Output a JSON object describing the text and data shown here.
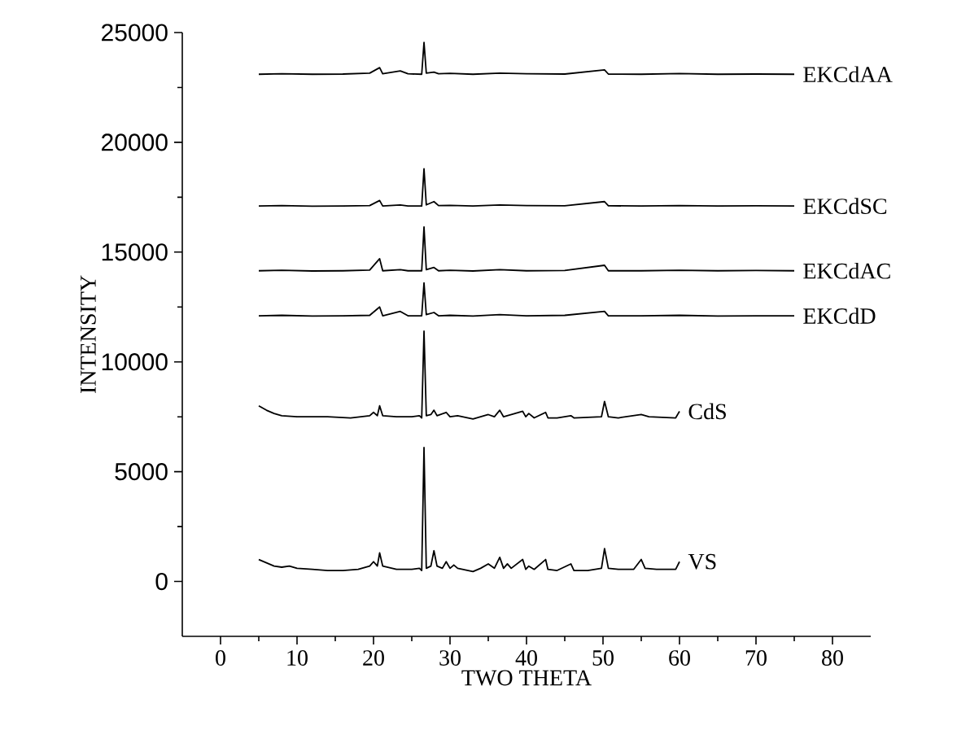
{
  "chart_data": {
    "type": "line",
    "xlabel": "TWO THETA",
    "ylabel": "INTENSITY",
    "xlim": [
      -5,
      85
    ],
    "ylim": [
      -2500,
      25000
    ],
    "xticks": [
      0,
      10,
      20,
      30,
      40,
      50,
      60,
      70,
      80
    ],
    "yticks": [
      0,
      5000,
      10000,
      15000,
      20000,
      25000
    ],
    "grid": false,
    "marker": "none",
    "line_style": "solid",
    "series": [
      {
        "name": "VS",
        "color": "#000000",
        "x": [
          5,
          6,
          7,
          8,
          9,
          10,
          12,
          14,
          16,
          18,
          19.5,
          20,
          20.5,
          20.8,
          21.2,
          23,
          25,
          26,
          26.3,
          26.6,
          26.9,
          27.5,
          27.9,
          28.3,
          29,
          29.5,
          30,
          30.5,
          31,
          33,
          34,
          35,
          35.8,
          36.5,
          37,
          37.5,
          38,
          39.5,
          39.9,
          40.3,
          41,
          42.5,
          42.8,
          44,
          45.8,
          46.2,
          48,
          49.8,
          50.2,
          50.7,
          52,
          54,
          55,
          55.5,
          57,
          59.5,
          60
        ],
        "values": [
          1000,
          850,
          700,
          650,
          700,
          600,
          550,
          500,
          500,
          550,
          700,
          900,
          700,
          1300,
          700,
          550,
          550,
          600,
          500,
          6100,
          600,
          700,
          1400,
          700,
          600,
          900,
          600,
          750,
          600,
          450,
          600,
          800,
          600,
          1100,
          600,
          800,
          600,
          1000,
          550,
          700,
          550,
          1000,
          550,
          500,
          800,
          500,
          500,
          600,
          1500,
          600,
          550,
          550,
          1000,
          600,
          550,
          550,
          900
        ]
      },
      {
        "name": "CdS",
        "color": "#000000",
        "x": [
          5,
          6,
          7,
          8,
          10,
          14,
          17,
          19.5,
          20,
          20.5,
          20.8,
          21.2,
          23,
          25,
          26,
          26.3,
          26.6,
          26.9,
          27.5,
          27.9,
          28.3,
          29.5,
          30,
          31,
          33,
          35,
          35.8,
          36.5,
          37,
          39.5,
          39.9,
          40.3,
          41,
          42.5,
          42.8,
          44,
          45.8,
          46.2,
          49.8,
          50.2,
          50.7,
          52,
          55,
          56,
          59.5,
          60
        ],
        "values": [
          8000,
          7800,
          7650,
          7550,
          7500,
          7500,
          7450,
          7550,
          7700,
          7550,
          8000,
          7550,
          7500,
          7500,
          7550,
          7450,
          11400,
          7550,
          7600,
          7800,
          7550,
          7700,
          7500,
          7550,
          7400,
          7600,
          7500,
          7800,
          7500,
          7750,
          7500,
          7650,
          7450,
          7700,
          7450,
          7450,
          7550,
          7450,
          7500,
          8200,
          7500,
          7450,
          7600,
          7500,
          7450,
          7750
        ]
      },
      {
        "name": "EKCdD",
        "color": "#000000",
        "x": [
          5,
          8,
          12,
          16,
          19.5,
          20.8,
          21.2,
          23.5,
          24.5,
          26.3,
          26.6,
          26.9,
          27.9,
          28.5,
          30,
          33,
          36.5,
          40,
          45,
          50.2,
          50.7,
          55,
          60,
          65,
          70,
          75
        ],
        "values": [
          12100,
          12120,
          12090,
          12100,
          12120,
          12500,
          12100,
          12300,
          12100,
          12100,
          13600,
          12150,
          12250,
          12100,
          12120,
          12090,
          12150,
          12100,
          12120,
          12300,
          12100,
          12100,
          12120,
          12090,
          12100,
          12100
        ]
      },
      {
        "name": "EKCdAC",
        "color": "#000000",
        "x": [
          5,
          8,
          12,
          16,
          19.5,
          20.8,
          21.2,
          23.5,
          24.5,
          26.3,
          26.6,
          26.9,
          27.9,
          28.5,
          30,
          33,
          36.5,
          40,
          45,
          50.2,
          50.7,
          55,
          60,
          65,
          70,
          75
        ],
        "values": [
          14150,
          14170,
          14140,
          14150,
          14180,
          14700,
          14150,
          14200,
          14150,
          14150,
          16150,
          14200,
          14300,
          14150,
          14170,
          14140,
          14200,
          14150,
          14160,
          14400,
          14150,
          14150,
          14170,
          14150,
          14160,
          14150
        ]
      },
      {
        "name": "EKCdSC",
        "color": "#000000",
        "x": [
          5,
          8,
          12,
          16,
          19.5,
          20.8,
          21.2,
          23.5,
          24.5,
          26.3,
          26.6,
          26.9,
          27.9,
          28.5,
          30,
          33,
          36.5,
          40,
          45,
          50.2,
          50.7,
          55,
          60,
          65,
          70,
          75
        ],
        "values": [
          17100,
          17120,
          17090,
          17100,
          17120,
          17350,
          17100,
          17150,
          17100,
          17100,
          18800,
          17150,
          17300,
          17120,
          17130,
          17100,
          17150,
          17120,
          17110,
          17300,
          17110,
          17100,
          17120,
          17100,
          17110,
          17100
        ]
      },
      {
        "name": "EKCdAA",
        "color": "#000000",
        "x": [
          5,
          8,
          12,
          16,
          19.5,
          20.8,
          21.2,
          23.5,
          24.5,
          26.3,
          26.6,
          26.9,
          27.9,
          28.5,
          30,
          33,
          36.5,
          40,
          45,
          50.2,
          50.7,
          55,
          60,
          65,
          70,
          75
        ],
        "values": [
          23100,
          23120,
          23100,
          23110,
          23150,
          23400,
          23120,
          23250,
          23120,
          23100,
          24550,
          23150,
          23200,
          23120,
          23140,
          23100,
          23150,
          23120,
          23110,
          23300,
          23110,
          23100,
          23130,
          23100,
          23110,
          23100
        ]
      }
    ]
  }
}
